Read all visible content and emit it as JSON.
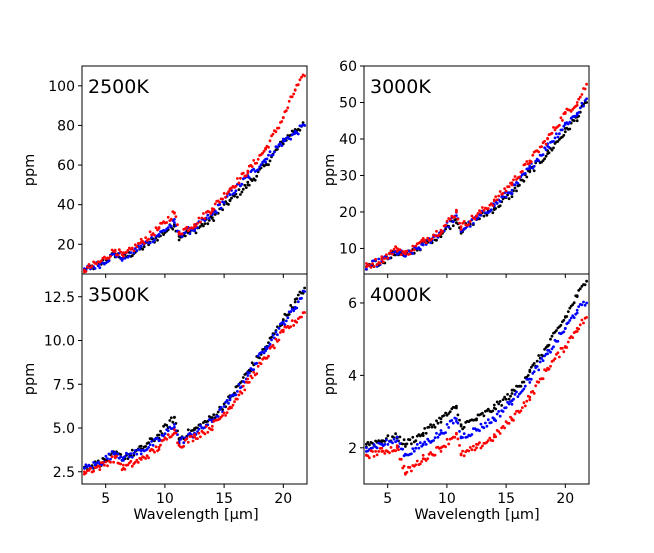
{
  "figure": {
    "xlabel": "Wavelength [μm]",
    "ylabel": "ppm",
    "series_colors": {
      "black": "#000000",
      "blue": "#0000ff",
      "red": "#ff0000"
    }
  },
  "chart_data": [
    {
      "type": "scatter",
      "title": "2500K",
      "xlabel": "",
      "ylabel": "ppm",
      "xlim": [
        3,
        22
      ],
      "ylim": [
        5,
        110
      ],
      "xticks": [
        5,
        10,
        15,
        20
      ],
      "yticks": [
        20,
        40,
        60,
        80,
        100
      ],
      "ytick_labels": [
        "20",
        "40",
        "60",
        "80",
        "100"
      ],
      "series": [
        {
          "name": "black",
          "color": "#000000",
          "x": [
            3.2,
            4.5,
            5.8,
            6.5,
            8.0,
            9.5,
            10.8,
            11.2,
            12.5,
            14.0,
            15.5,
            17.0,
            18.5,
            20.0,
            21.0,
            21.8
          ],
          "y": [
            7,
            10,
            15,
            13,
            18,
            24,
            30,
            24,
            27,
            33,
            42,
            50,
            60,
            72,
            78,
            80
          ]
        },
        {
          "name": "blue",
          "color": "#0000ff",
          "x": [
            3.2,
            4.5,
            5.8,
            6.5,
            8.0,
            9.5,
            10.8,
            11.2,
            12.5,
            14.0,
            15.5,
            17.0,
            18.5,
            20.0,
            21.0,
            21.8
          ],
          "y": [
            7,
            10,
            15,
            13,
            19,
            25,
            31,
            25,
            28,
            35,
            45,
            54,
            63,
            72,
            76,
            80
          ]
        },
        {
          "name": "red",
          "color": "#ff0000",
          "x": [
            3.2,
            4.5,
            5.8,
            6.5,
            8.0,
            9.5,
            10.8,
            11.2,
            12.5,
            14.0,
            15.5,
            17.0,
            18.5,
            20.0,
            21.0,
            21.8
          ],
          "y": [
            7,
            11,
            17,
            14,
            21,
            28,
            36,
            26,
            30,
            38,
            48,
            57,
            68,
            84,
            98,
            105
          ]
        }
      ]
    },
    {
      "type": "scatter",
      "title": "3000K",
      "xlabel": "",
      "ylabel": "",
      "xlim": [
        3,
        22
      ],
      "ylim": [
        3,
        60
      ],
      "xticks": [
        5,
        10,
        15,
        20
      ],
      "yticks": [
        10,
        20,
        30,
        40,
        50,
        60
      ],
      "ytick_labels": [
        "10",
        "20",
        "30",
        "40",
        "50",
        "60"
      ],
      "series": [
        {
          "name": "black",
          "color": "#000000",
          "x": [
            3.2,
            4.5,
            5.8,
            6.5,
            8.0,
            9.5,
            10.8,
            11.2,
            12.5,
            14.0,
            15.5,
            17.0,
            18.5,
            20.0,
            21.0,
            21.8
          ],
          "y": [
            5,
            6.5,
            9,
            8,
            11,
            14,
            18,
            15,
            18,
            21,
            25,
            31,
            36,
            42,
            46,
            50
          ]
        },
        {
          "name": "blue",
          "color": "#0000ff",
          "x": [
            3.2,
            4.5,
            5.8,
            6.5,
            8.0,
            9.5,
            10.8,
            11.2,
            12.5,
            14.0,
            15.5,
            17.0,
            18.5,
            20.0,
            21.0,
            21.8
          ],
          "y": [
            5,
            6.5,
            9,
            8,
            11,
            14.5,
            19,
            15,
            18,
            22,
            26,
            32,
            38,
            44,
            47,
            51
          ]
        },
        {
          "name": "red",
          "color": "#ff0000",
          "x": [
            3.2,
            4.5,
            5.8,
            6.5,
            8.0,
            9.5,
            10.8,
            11.2,
            12.5,
            14.0,
            15.5,
            17.0,
            18.5,
            20.0,
            21.0,
            21.8
          ],
          "y": [
            5,
            7,
            10,
            8.5,
            12,
            15,
            20,
            16,
            19,
            23,
            28,
            34,
            40,
            47,
            50,
            55
          ]
        }
      ]
    },
    {
      "type": "scatter",
      "title": "3500K",
      "xlabel": "Wavelength [μm]",
      "ylabel": "ppm",
      "xlim": [
        3,
        22
      ],
      "ylim": [
        1.8,
        13.8
      ],
      "xticks": [
        5,
        10,
        15,
        20
      ],
      "xtick_labels": [
        "5",
        "10",
        "15",
        "20"
      ],
      "yticks": [
        2.5,
        5.0,
        7.5,
        10.0,
        12.5
      ],
      "ytick_labels": [
        "2.5",
        "5.0",
        "7.5",
        "10.0",
        "12.5"
      ],
      "series": [
        {
          "name": "black",
          "color": "#000000",
          "x": [
            3.2,
            4.5,
            5.8,
            6.5,
            8.0,
            9.5,
            10.8,
            11.2,
            12.5,
            14.0,
            15.5,
            17.0,
            18.5,
            20.0,
            21.0,
            21.8
          ],
          "y": [
            2.7,
            3.0,
            3.5,
            3.3,
            3.8,
            4.6,
            5.6,
            4.4,
            4.9,
            5.6,
            6.7,
            8.2,
            9.6,
            11.2,
            12.2,
            13.0
          ]
        },
        {
          "name": "blue",
          "color": "#0000ff",
          "x": [
            3.2,
            4.5,
            5.8,
            6.5,
            8.0,
            9.5,
            10.8,
            11.2,
            12.5,
            14.0,
            15.5,
            17.0,
            18.5,
            20.0,
            21.0,
            21.8
          ],
          "y": [
            2.7,
            3.0,
            3.6,
            3.3,
            3.7,
            4.3,
            5.2,
            4.2,
            4.7,
            5.4,
            6.6,
            8.0,
            9.6,
            11.0,
            11.9,
            12.8
          ]
        },
        {
          "name": "red",
          "color": "#ff0000",
          "x": [
            3.2,
            4.5,
            5.8,
            6.5,
            8.0,
            9.5,
            10.8,
            11.2,
            12.5,
            14.0,
            15.5,
            17.0,
            18.5,
            20.0,
            21.0,
            21.8
          ],
          "y": [
            2.5,
            2.8,
            3.3,
            2.7,
            3.2,
            3.9,
            4.9,
            4.0,
            4.5,
            5.1,
            6.2,
            7.6,
            9.0,
            10.5,
            11.1,
            11.6
          ]
        }
      ]
    },
    {
      "type": "scatter",
      "title": "4000K",
      "xlabel": "Wavelength [μm]",
      "ylabel": "",
      "xlim": [
        3,
        22
      ],
      "ylim": [
        1.0,
        6.8
      ],
      "xticks": [
        5,
        10,
        15,
        20
      ],
      "xtick_labels": [
        "5",
        "10",
        "15",
        "20"
      ],
      "yticks": [
        2,
        4,
        6
      ],
      "ytick_labels": [
        "2",
        "4",
        "6"
      ],
      "series": [
        {
          "name": "black",
          "color": "#000000",
          "x": [
            3.2,
            4.5,
            5.8,
            6.5,
            8.0,
            9.5,
            10.8,
            11.2,
            12.5,
            14.0,
            15.5,
            17.0,
            18.5,
            20.0,
            21.0,
            21.8
          ],
          "y": [
            2.1,
            2.2,
            2.3,
            2.1,
            2.4,
            2.8,
            3.1,
            2.6,
            2.8,
            3.1,
            3.5,
            4.1,
            4.8,
            5.6,
            6.2,
            6.6
          ]
        },
        {
          "name": "blue",
          "color": "#0000ff",
          "x": [
            3.2,
            4.5,
            5.8,
            6.5,
            8.0,
            9.5,
            10.8,
            11.2,
            12.5,
            14.0,
            15.5,
            17.0,
            18.5,
            20.0,
            21.0,
            21.8
          ],
          "y": [
            2.0,
            2.1,
            2.2,
            1.8,
            2.1,
            2.4,
            2.8,
            2.3,
            2.5,
            2.8,
            3.3,
            3.9,
            4.6,
            5.3,
            5.8,
            6.0
          ]
        },
        {
          "name": "red",
          "color": "#ff0000",
          "x": [
            3.2,
            4.5,
            5.8,
            6.5,
            8.0,
            9.5,
            10.8,
            11.2,
            12.5,
            14.0,
            15.5,
            17.0,
            18.5,
            20.0,
            21.0,
            21.8
          ],
          "y": [
            1.8,
            1.9,
            2.0,
            1.3,
            1.7,
            2.0,
            2.4,
            1.8,
            2.0,
            2.3,
            2.8,
            3.4,
            4.2,
            4.8,
            5.3,
            5.6
          ]
        }
      ]
    }
  ]
}
